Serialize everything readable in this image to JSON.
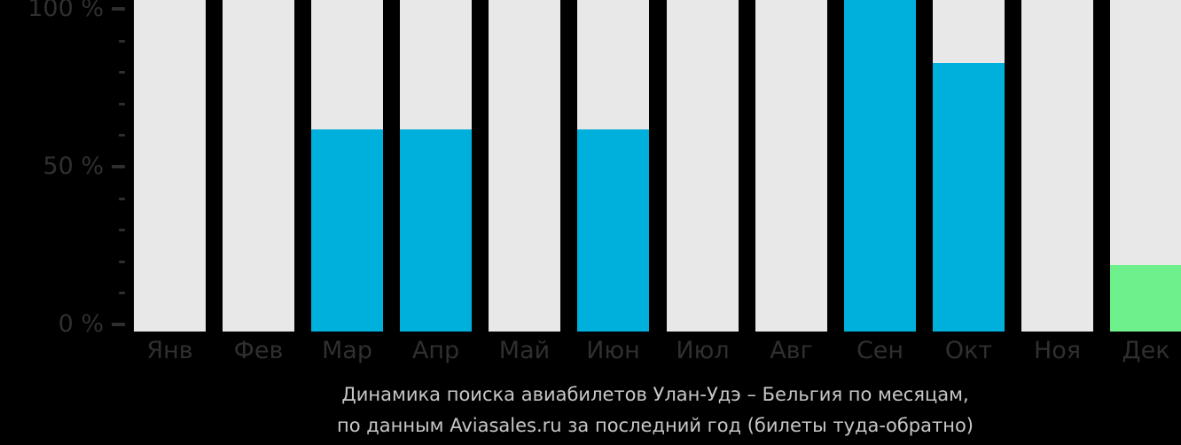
{
  "chart_data": {
    "type": "bar",
    "title_lines": [
      "Динамика поиска авиабилетов Улан-Удэ – Бельгия по месяцам,",
      "по данным Aviasales.ru за последний год (билеты туда-обратно)"
    ],
    "categories": [
      "Янв",
      "Фев",
      "Мар",
      "Апр",
      "Май",
      "Июн",
      "Июл",
      "Авг",
      "Сен",
      "Окт",
      "Ноя",
      "Дек"
    ],
    "values": [
      0,
      0,
      61,
      61,
      0,
      61,
      0,
      0,
      100,
      81,
      0,
      20
    ],
    "unit": "%",
    "ylim": [
      0,
      100
    ],
    "y_ticks": [
      {
        "value": 100,
        "label": "100 %"
      },
      {
        "value": 90,
        "label": ""
      },
      {
        "value": 80,
        "label": ""
      },
      {
        "value": 70,
        "label": ""
      },
      {
        "value": 60,
        "label": ""
      },
      {
        "value": 50,
        "label": "50 %"
      },
      {
        "value": 40,
        "label": ""
      },
      {
        "value": 30,
        "label": ""
      },
      {
        "value": 20,
        "label": ""
      },
      {
        "value": 10,
        "label": ""
      },
      {
        "value": 0,
        "label": "0 %"
      }
    ],
    "grid": "off",
    "legend": "none",
    "highlight_month_index": 11,
    "colors": {
      "background": "#000000",
      "track": "#e8e8e8",
      "bar": "#00b0dc",
      "highlight_bar": "#6ef08c",
      "axis_text": "#2f2f2f",
      "tick_dash": "#2e2e2e",
      "title_text": "#c7c7c7"
    }
  }
}
